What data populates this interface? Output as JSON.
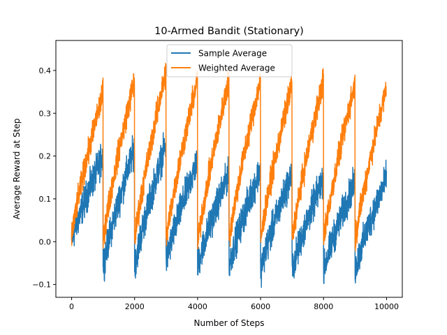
{
  "chart_data": {
    "type": "line",
    "title": "10-Armed Bandit (Stationary)",
    "xlabel": "Number of Steps",
    "ylabel": "Average Reward at Step",
    "xlim": [
      -500,
      10500
    ],
    "ylim": [
      -0.13,
      0.47
    ],
    "x_ticks": [
      0,
      2000,
      4000,
      6000,
      8000,
      10000
    ],
    "x_tick_labels": [
      "0",
      "2000",
      "4000",
      "6000",
      "8000",
      "10000"
    ],
    "y_ticks": [
      -0.1,
      0.0,
      0.1,
      0.2,
      0.3,
      0.4
    ],
    "y_tick_labels": [
      "−0.1",
      "0.0",
      "0.1",
      "0.2",
      "0.3",
      "0.4"
    ],
    "grid": false,
    "legend_placement": "upper center",
    "legend": [
      "Sample Average",
      "Weighted Average"
    ],
    "colors": {
      "Sample Average": "#1f77b4",
      "Weighted Average": "#ff7f0e"
    },
    "cycle_length": 1000,
    "series": [
      {
        "name": "Sample Average",
        "segment_start": [
          0.0,
          -0.06,
          -0.06,
          -0.05,
          -0.06,
          -0.06,
          -0.07,
          -0.07,
          -0.07,
          -0.07
        ],
        "segment_end": [
          0.2,
          0.22,
          0.23,
          0.19,
          0.16,
          0.17,
          0.16,
          0.15,
          0.14,
          0.15
        ],
        "segment_noise": 0.055
      },
      {
        "name": "Weighted Average",
        "segment_start": [
          0.01,
          0.0,
          0.0,
          0.0,
          -0.01,
          0.0,
          0.0,
          0.0,
          0.0,
          0.0
        ],
        "segment_end": [
          0.35,
          0.38,
          0.4,
          0.38,
          0.38,
          0.38,
          0.37,
          0.38,
          0.37,
          0.36
        ],
        "segment_noise": 0.045
      }
    ]
  }
}
